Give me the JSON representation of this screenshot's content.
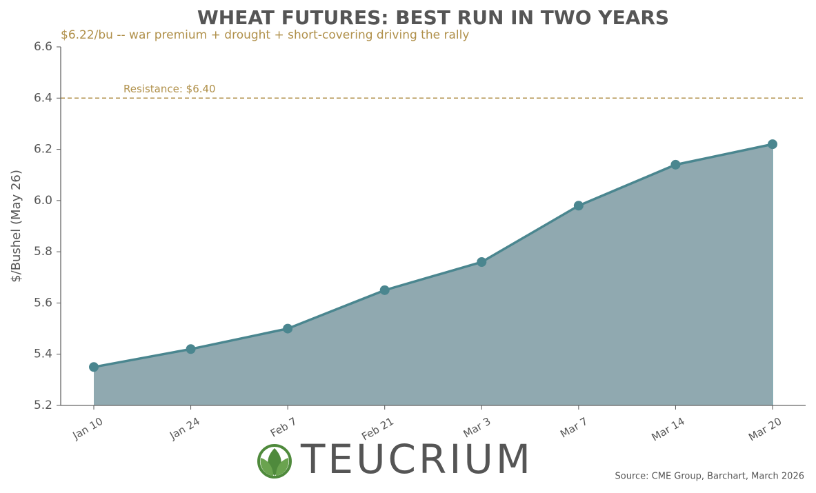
{
  "chart_data": {
    "type": "area_line",
    "title": "WHEAT FUTURES: BEST RUN IN TWO YEARS",
    "subtitle": "$6.22/bu -- war premium + drought + short-covering driving the rally",
    "y_label": "$/Bushel (May 26)",
    "categories": [
      "Jan 10",
      "Jan 24",
      "Feb 7",
      "Feb 21",
      "Mar 3",
      "Mar 7",
      "Mar 14",
      "Mar 20"
    ],
    "values": [
      5.35,
      5.42,
      5.5,
      5.65,
      5.76,
      5.98,
      6.14,
      6.22
    ],
    "color": "#4a868f",
    "fill_color": "#90a9b0",
    "ylim": [
      5.2,
      6.6
    ],
    "yticks": [
      5.2,
      5.4,
      5.6,
      5.8,
      {
        "value": 6,
        "label": "6.0"
      },
      6.2,
      6.4,
      6.6
    ],
    "reference_line": {
      "value": 6.4,
      "label": "Resistance: $6.40",
      "color": "#b0904a"
    },
    "source": "Source: CME Group, Barchart, March 2026",
    "logo": "TEUCRIUM"
  }
}
